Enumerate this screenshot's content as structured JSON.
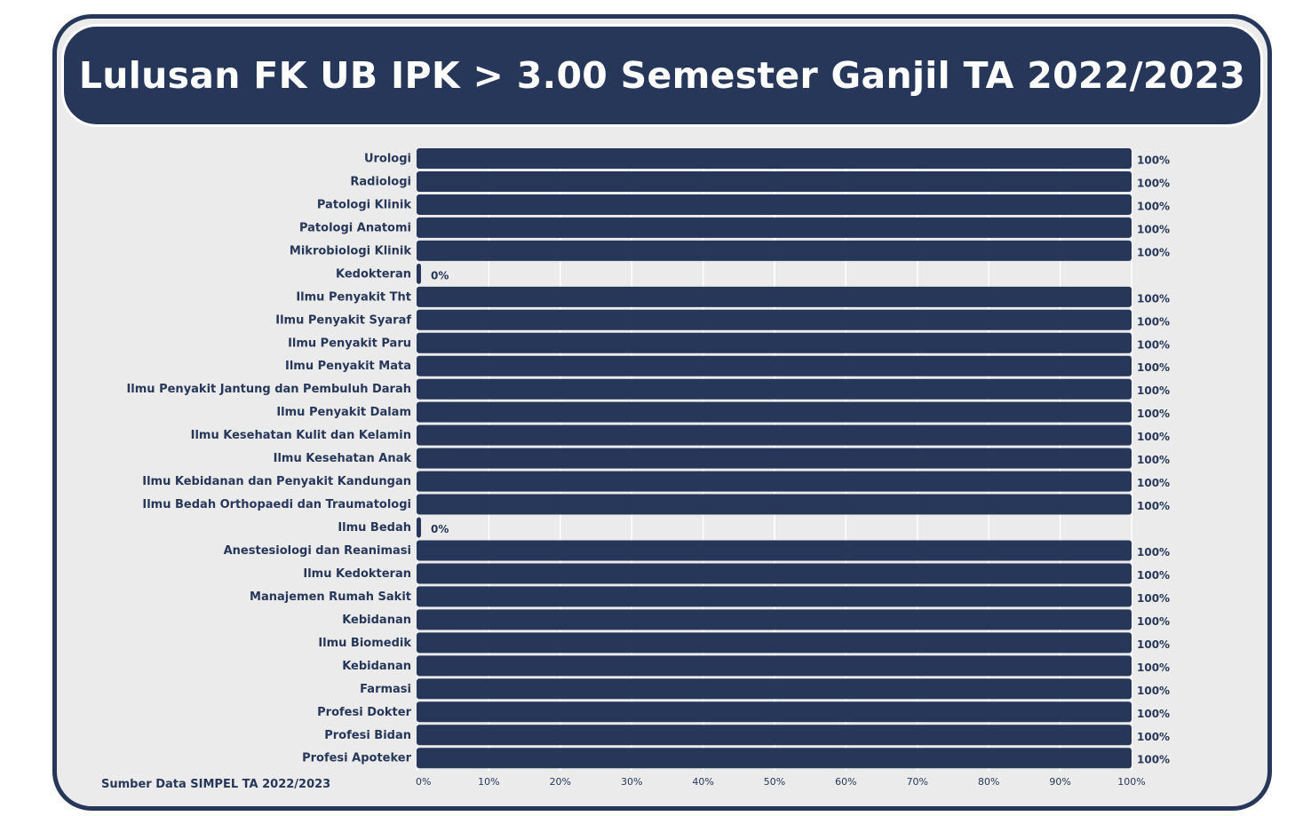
{
  "colors": {
    "bar": "#263759",
    "panel": "#ebebeb",
    "grid": "#ffffff",
    "text": "#263759"
  },
  "chart_data": {
    "type": "bar",
    "orientation": "horizontal",
    "title": "Lulusan FK UB IPK > 3.00 Semester Ganjil TA 2022/2023",
    "xlabel": "",
    "ylabel": "",
    "xlim": [
      0,
      100
    ],
    "x_ticks": [
      "0%",
      "10%",
      "20%",
      "30%",
      "40%",
      "50%",
      "60%",
      "70%",
      "80%",
      "90%",
      "100%"
    ],
    "grid": true,
    "value_suffix": "%",
    "categories": [
      "Urologi",
      "Radiologi",
      "Patologi Klinik",
      "Patologi Anatomi",
      "Mikrobiologi Klinik",
      "Kedokteran",
      "Ilmu Penyakit Tht",
      "Ilmu Penyakit Syaraf",
      "Ilmu Penyakit Paru",
      "Ilmu Penyakit Mata",
      "Ilmu Penyakit Jantung dan Pembuluh Darah",
      "Ilmu Penyakit Dalam",
      "Ilmu Kesehatan Kulit dan Kelamin",
      "Ilmu Kesehatan Anak",
      "Ilmu Kebidanan dan Penyakit Kandungan",
      "Ilmu Bedah Orthopaedi dan Traumatologi",
      "Ilmu Bedah",
      "Anestesiologi dan Reanimasi",
      "Ilmu Kedokteran",
      "Manajemen Rumah Sakit",
      "Kebidanan",
      "Ilmu Biomedik",
      "Kebidanan",
      "Farmasi",
      "Profesi Dokter",
      "Profesi Bidan",
      "Profesi Apoteker"
    ],
    "values": [
      100,
      100,
      100,
      100,
      100,
      0,
      100,
      100,
      100,
      100,
      100,
      100,
      100,
      100,
      100,
      100,
      0,
      100,
      100,
      100,
      100,
      100,
      100,
      100,
      100,
      100,
      100
    ]
  },
  "source_note": "Sumber Data SIMPEL TA 2022/2023"
}
